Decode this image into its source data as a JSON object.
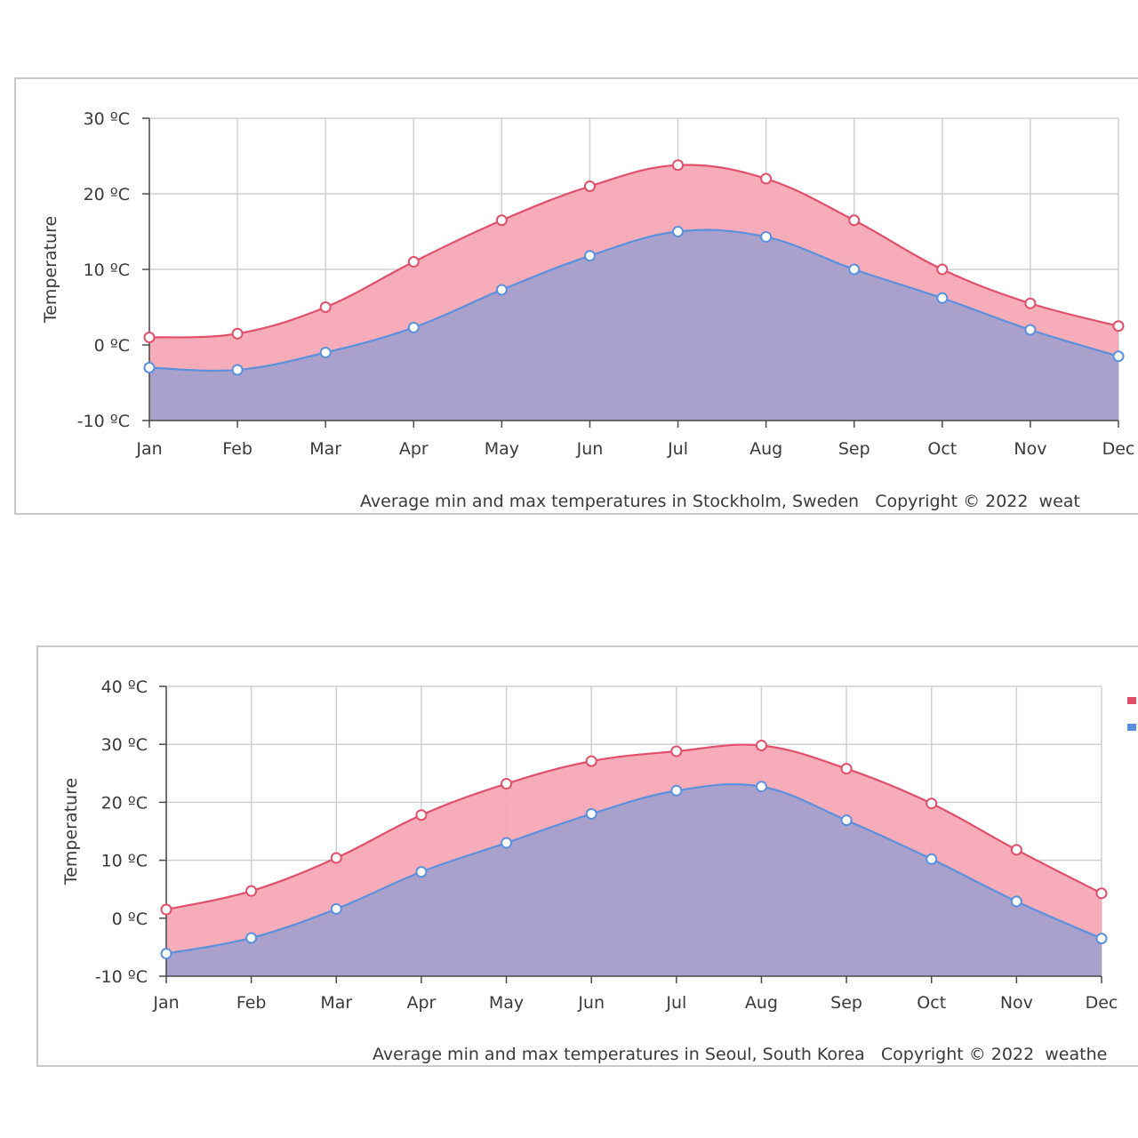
{
  "chart_data": [
    {
      "type": "area",
      "caption": "Average min and max temperatures in Stockholm, Sweden   Copyright © 2022  weat",
      "ylabel": "Temperature",
      "categories": [
        "Jan",
        "Feb",
        "Mar",
        "Apr",
        "May",
        "Jun",
        "Jul",
        "Aug",
        "Sep",
        "Oct",
        "Nov",
        "Dec"
      ],
      "y_ticks": [
        "30 ºC",
        "20 ºC",
        "10 ºC",
        "0 ºC",
        "-10 ºC"
      ],
      "ylim": [
        -10,
        30
      ],
      "grid": true,
      "series": [
        {
          "key": "max",
          "values": [
            1,
            1.5,
            5,
            11,
            16.5,
            21,
            23.8,
            22,
            16.5,
            10,
            5.5,
            2.5
          ]
        },
        {
          "key": "min",
          "values": [
            -3,
            -3.3,
            -1,
            2.3,
            7.3,
            11.8,
            15,
            14.3,
            10,
            6.2,
            2,
            -1.5
          ]
        }
      ]
    },
    {
      "type": "area",
      "caption": "Average min and max temperatures in Seoul, South Korea   Copyright © 2022  weathe",
      "ylabel": "Temperature",
      "categories": [
        "Jan",
        "Feb",
        "Mar",
        "Apr",
        "May",
        "Jun",
        "Jul",
        "Aug",
        "Sep",
        "Oct",
        "Nov",
        "Dec"
      ],
      "y_ticks": [
        "40 ºC",
        "30 ºC",
        "20 ºC",
        "10 ºC",
        "0 ºC",
        "-10 ºC"
      ],
      "ylim": [
        -10,
        40
      ],
      "grid": true,
      "legend": "top-right (partially cut off)",
      "series": [
        {
          "key": "max",
          "values": [
            1.5,
            4.7,
            10.4,
            17.8,
            23.2,
            27.1,
            28.8,
            29.8,
            25.8,
            19.8,
            11.8,
            4.3
          ]
        },
        {
          "key": "min",
          "values": [
            -6.1,
            -3.4,
            1.6,
            8,
            13,
            18,
            22,
            22.7,
            16.9,
            10.2,
            2.9,
            -3.5
          ]
        }
      ]
    }
  ],
  "colors": {
    "max_line": "#e0506a",
    "max_fill": "#f5a8b5",
    "min_line": "#5b90dc",
    "min_fill": "#a9a0cb",
    "marker_fill": "#ffffff"
  }
}
